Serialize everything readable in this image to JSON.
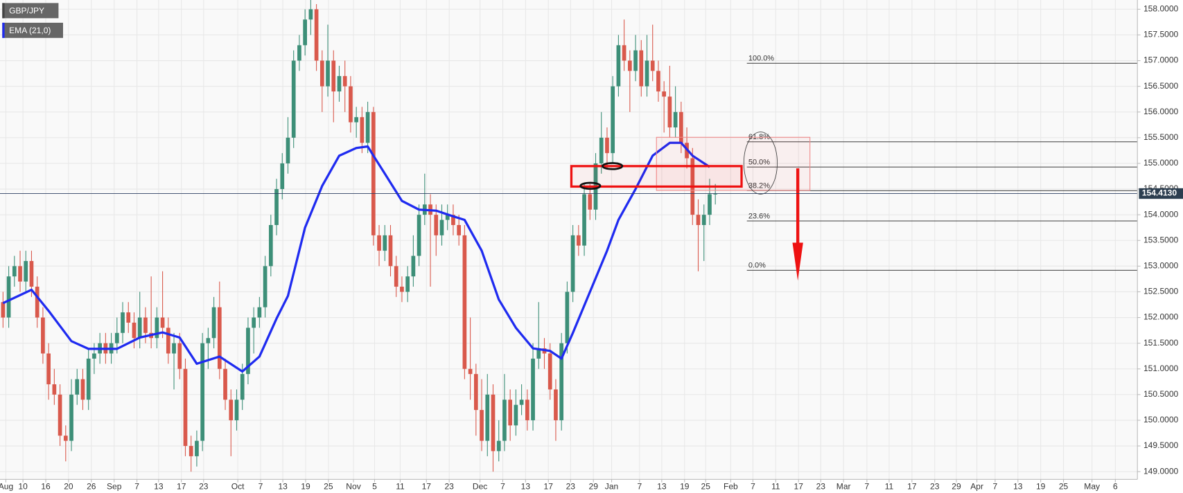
{
  "chart_data": {
    "type": "candlestick",
    "up_color": "#3d8f78",
    "down_color": "#d9594c",
    "grid": true,
    "xlim": [
      -0.53,
      199.07
    ],
    "ylim": [
      148.85,
      158.18
    ],
    "yticks": [
      {
        "value": 149.0,
        "label": "149.0000"
      },
      {
        "value": 149.5,
        "label": "149.5000"
      },
      {
        "value": 150.0,
        "label": "150.0000"
      },
      {
        "value": 150.5,
        "label": "150.5000"
      },
      {
        "value": 151.0,
        "label": "151.0000"
      },
      {
        "value": 151.5,
        "label": "151.5000"
      },
      {
        "value": 152.0,
        "label": "152.0000"
      },
      {
        "value": 152.5,
        "label": "152.5000"
      },
      {
        "value": 153.0,
        "label": "153.0000"
      },
      {
        "value": 153.5,
        "label": "153.5000"
      },
      {
        "value": 154.0,
        "label": "154.0000"
      },
      {
        "value": 154.5,
        "label": "154.5000"
      },
      {
        "value": 155.0,
        "label": "155.0000"
      },
      {
        "value": 155.5,
        "label": "155.5000"
      },
      {
        "value": 156.0,
        "label": "156.0000"
      },
      {
        "value": 156.5,
        "label": "156.5000"
      },
      {
        "value": 157.0,
        "label": "157.0000"
      },
      {
        "value": 157.5,
        "label": "157.5000"
      },
      {
        "value": 158.0,
        "label": "158.0000"
      }
    ],
    "xticks": [
      {
        "value": 0.5,
        "label": "Aug"
      },
      {
        "value": 3.5,
        "label": "10"
      },
      {
        "value": 7.5,
        "label": "16"
      },
      {
        "value": 11.5,
        "label": "20"
      },
      {
        "value": 15.5,
        "label": "26"
      },
      {
        "value": 19.5,
        "label": "Sep"
      },
      {
        "value": 23.5,
        "label": "7"
      },
      {
        "value": 27.3,
        "label": "13"
      },
      {
        "value": 31.3,
        "label": "17"
      },
      {
        "value": 35.2,
        "label": "23"
      },
      {
        "value": 41.2,
        "label": "Oct"
      },
      {
        "value": 45.2,
        "label": "7"
      },
      {
        "value": 49.1,
        "label": "13"
      },
      {
        "value": 53.1,
        "label": "19"
      },
      {
        "value": 57.1,
        "label": "25"
      },
      {
        "value": 61.5,
        "label": "Nov"
      },
      {
        "value": 65.2,
        "label": "5"
      },
      {
        "value": 69.7,
        "label": "11"
      },
      {
        "value": 74.3,
        "label": "17"
      },
      {
        "value": 78.3,
        "label": "23"
      },
      {
        "value": 83.7,
        "label": "Dec"
      },
      {
        "value": 87.7,
        "label": "7"
      },
      {
        "value": 91.7,
        "label": "13"
      },
      {
        "value": 95.7,
        "label": "17"
      },
      {
        "value": 99.6,
        "label": "23"
      },
      {
        "value": 103.6,
        "label": "29"
      },
      {
        "value": 106.8,
        "label": "Jan"
      },
      {
        "value": 111.7,
        "label": "7"
      },
      {
        "value": 115.6,
        "label": "13"
      },
      {
        "value": 119.6,
        "label": "19"
      },
      {
        "value": 123.3,
        "label": "25"
      },
      {
        "value": 127.7,
        "label": "Feb"
      },
      {
        "value": 131.6,
        "label": "7"
      },
      {
        "value": 135.6,
        "label": "11"
      },
      {
        "value": 139.6,
        "label": "17"
      },
      {
        "value": 143.5,
        "label": "23"
      },
      {
        "value": 147.5,
        "label": "Mar"
      },
      {
        "value": 151.6,
        "label": "7"
      },
      {
        "value": 155.5,
        "label": "11"
      },
      {
        "value": 159.5,
        "label": "17"
      },
      {
        "value": 163.5,
        "label": "23"
      },
      {
        "value": 167.3,
        "label": "29"
      },
      {
        "value": 170.9,
        "label": "Apr"
      },
      {
        "value": 174.1,
        "label": "7"
      },
      {
        "value": 178.1,
        "label": "13"
      },
      {
        "value": 182.1,
        "label": "19"
      },
      {
        "value": 186.1,
        "label": "25"
      },
      {
        "value": 191.1,
        "label": "May"
      },
      {
        "value": 195.2,
        "label": "6"
      }
    ],
    "series": [
      {
        "name": "GBP/JPY",
        "candles": [
          [
            152.3,
            152.5,
            151.8,
            152.0
          ],
          [
            152.0,
            153.0,
            151.8,
            152.8
          ],
          [
            152.8,
            153.2,
            152.6,
            153.0
          ],
          [
            153.0,
            153.3,
            152.5,
            152.7
          ],
          [
            152.7,
            153.3,
            152.5,
            153.1
          ],
          [
            153.1,
            153.3,
            152.4,
            152.6
          ],
          [
            152.6,
            152.8,
            151.8,
            152.0
          ],
          [
            152.0,
            152.2,
            151.1,
            151.3
          ],
          [
            151.3,
            151.5,
            150.4,
            150.7
          ],
          [
            150.7,
            151.0,
            150.3,
            150.5
          ],
          [
            150.5,
            150.7,
            149.5,
            149.7
          ],
          [
            149.7,
            149.9,
            149.2,
            149.6
          ],
          [
            149.6,
            150.8,
            149.4,
            150.5
          ],
          [
            150.5,
            151.0,
            150.3,
            150.8
          ],
          [
            150.8,
            151.0,
            150.2,
            150.4
          ],
          [
            150.4,
            151.4,
            150.2,
            151.2
          ],
          [
            151.2,
            151.5,
            150.9,
            151.3
          ],
          [
            151.3,
            151.7,
            151.1,
            151.5
          ],
          [
            151.5,
            151.7,
            151.1,
            151.3
          ],
          [
            151.3,
            151.7,
            151.1,
            151.5
          ],
          [
            151.5,
            152.0,
            151.3,
            151.7
          ],
          [
            151.7,
            152.3,
            151.5,
            152.1
          ],
          [
            152.1,
            152.3,
            151.7,
            151.9
          ],
          [
            151.9,
            152.1,
            151.4,
            151.6
          ],
          [
            151.6,
            152.5,
            151.4,
            152.0
          ],
          [
            152.0,
            152.2,
            151.5,
            151.7
          ],
          [
            151.7,
            152.8,
            151.4,
            151.6
          ],
          [
            151.6,
            152.2,
            151.4,
            152.0
          ],
          [
            152.0,
            152.9,
            151.6,
            151.8
          ],
          [
            151.8,
            152.0,
            151.1,
            151.3
          ],
          [
            151.3,
            151.7,
            150.6,
            151.5
          ],
          [
            151.5,
            151.7,
            150.8,
            151.0
          ],
          [
            151.0,
            151.2,
            149.3,
            149.5
          ],
          [
            149.5,
            149.7,
            149.0,
            149.3
          ],
          [
            149.3,
            149.8,
            149.1,
            149.6
          ],
          [
            149.6,
            151.7,
            149.4,
            151.5
          ],
          [
            151.5,
            151.8,
            151.0,
            151.6
          ],
          [
            151.6,
            152.4,
            151.4,
            152.2
          ],
          [
            152.2,
            152.7,
            150.8,
            151.0
          ],
          [
            151.0,
            151.2,
            150.2,
            150.4
          ],
          [
            150.4,
            150.6,
            149.3,
            150.0
          ],
          [
            150.0,
            150.6,
            149.8,
            150.4
          ],
          [
            150.4,
            151.1,
            150.2,
            150.9
          ],
          [
            150.9,
            152.0,
            150.7,
            151.8
          ],
          [
            151.8,
            152.2,
            151.3,
            152.0
          ],
          [
            152.0,
            152.4,
            151.8,
            152.2
          ],
          [
            152.2,
            153.2,
            152.0,
            153.0
          ],
          [
            153.0,
            154.0,
            152.8,
            153.8
          ],
          [
            153.8,
            154.7,
            153.6,
            154.5
          ],
          [
            154.5,
            155.2,
            154.3,
            155.0
          ],
          [
            155.0,
            155.9,
            154.8,
            155.5
          ],
          [
            155.5,
            157.2,
            155.3,
            157.0
          ],
          [
            157.0,
            157.5,
            156.8,
            157.3
          ],
          [
            157.3,
            158.0,
            157.1,
            157.8
          ],
          [
            157.8,
            158.2,
            157.5,
            158.0
          ],
          [
            158.0,
            158.1,
            156.8,
            157.0
          ],
          [
            157.0,
            157.2,
            156.0,
            156.5
          ],
          [
            156.5,
            157.7,
            156.3,
            157.0
          ],
          [
            157.0,
            157.2,
            155.8,
            156.4
          ],
          [
            156.4,
            156.9,
            156.2,
            156.7
          ],
          [
            156.7,
            157.0,
            156.0,
            156.5
          ],
          [
            156.5,
            156.7,
            155.6,
            155.8
          ],
          [
            155.8,
            156.1,
            155.5,
            155.9
          ],
          [
            155.9,
            156.1,
            155.2,
            155.4
          ],
          [
            155.4,
            156.2,
            155.2,
            156.0
          ],
          [
            156.0,
            156.1,
            153.4,
            153.6
          ],
          [
            153.6,
            153.8,
            153.0,
            153.3
          ],
          [
            153.3,
            153.8,
            153.1,
            153.6
          ],
          [
            153.6,
            153.8,
            152.8,
            153.0
          ],
          [
            153.0,
            153.2,
            152.4,
            152.6
          ],
          [
            152.6,
            152.8,
            152.3,
            152.5
          ],
          [
            152.5,
            153.0,
            152.3,
            152.8
          ],
          [
            152.8,
            153.6,
            152.6,
            153.2
          ],
          [
            153.2,
            154.2,
            153.0,
            154.0
          ],
          [
            154.0,
            154.8,
            153.8,
            154.2
          ],
          [
            154.2,
            154.4,
            152.6,
            154.0
          ],
          [
            154.0,
            154.2,
            153.2,
            153.6
          ],
          [
            153.6,
            154.2,
            153.4,
            153.9
          ],
          [
            153.9,
            154.2,
            153.7,
            154.0
          ],
          [
            154.0,
            154.2,
            153.6,
            153.8
          ],
          [
            153.8,
            154.0,
            153.4,
            153.6
          ],
          [
            153.6,
            153.8,
            150.8,
            151.0
          ],
          [
            151.0,
            152.0,
            150.4,
            150.9
          ],
          [
            150.9,
            151.1,
            149.7,
            150.2
          ],
          [
            150.2,
            150.8,
            149.4,
            149.6
          ],
          [
            149.6,
            150.9,
            149.3,
            150.5
          ],
          [
            150.5,
            150.7,
            149.0,
            149.4
          ],
          [
            149.4,
            150.0,
            149.2,
            149.6
          ],
          [
            149.6,
            150.9,
            149.4,
            150.4
          ],
          [
            150.4,
            150.6,
            149.6,
            149.9
          ],
          [
            149.9,
            150.6,
            149.7,
            150.3
          ],
          [
            150.3,
            150.7,
            150.1,
            150.4
          ],
          [
            150.4,
            150.6,
            149.8,
            150.0
          ],
          [
            150.0,
            151.5,
            149.8,
            151.2
          ],
          [
            151.2,
            152.3,
            151.0,
            151.4
          ],
          [
            151.4,
            151.6,
            151.0,
            151.3
          ],
          [
            151.3,
            151.5,
            150.4,
            150.6
          ],
          [
            150.6,
            150.8,
            149.6,
            150.0
          ],
          [
            150.0,
            151.7,
            149.8,
            151.5
          ],
          [
            151.5,
            152.7,
            151.3,
            152.5
          ],
          [
            152.5,
            153.8,
            152.3,
            153.6
          ],
          [
            153.6,
            153.8,
            153.2,
            153.4
          ],
          [
            153.4,
            154.6,
            153.2,
            154.4
          ],
          [
            154.4,
            154.6,
            153.9,
            154.1
          ],
          [
            154.1,
            155.2,
            153.9,
            155.0
          ],
          [
            155.0,
            156.0,
            154.8,
            155.5
          ],
          [
            155.5,
            155.7,
            154.9,
            155.2
          ],
          [
            155.2,
            156.7,
            155.0,
            156.5
          ],
          [
            156.5,
            157.5,
            156.3,
            157.3
          ],
          [
            157.3,
            157.8,
            156.8,
            157.0
          ],
          [
            157.0,
            157.2,
            156.0,
            156.8
          ],
          [
            156.8,
            157.5,
            156.6,
            157.2
          ],
          [
            157.2,
            157.4,
            156.3,
            156.5
          ],
          [
            156.5,
            157.5,
            156.3,
            157.0
          ],
          [
            157.0,
            157.7,
            156.6,
            156.8
          ],
          [
            156.8,
            157.0,
            156.2,
            156.4
          ],
          [
            156.4,
            156.6,
            155.6,
            156.3
          ],
          [
            156.3,
            156.9,
            155.5,
            155.7
          ],
          [
            155.7,
            156.5,
            155.5,
            156.0
          ],
          [
            156.0,
            156.2,
            155.2,
            155.4
          ],
          [
            155.4,
            155.7,
            154.9,
            155.1
          ],
          [
            155.1,
            155.3,
            153.8,
            154.0
          ],
          [
            154.0,
            154.3,
            152.9,
            153.8
          ],
          [
            153.8,
            154.2,
            153.1,
            154.0
          ],
          [
            154.0,
            154.7,
            153.8,
            154.4
          ],
          [
            154.4,
            154.6,
            154.2,
            154.41
          ]
        ]
      },
      {
        "name": "EMA (21,0)",
        "color": "#1f2bf0",
        "x": [
          0,
          5,
          8,
          12,
          15,
          20,
          24,
          28,
          31,
          34,
          38,
          42,
          45,
          48,
          50,
          53,
          56,
          59,
          62,
          64,
          65,
          67,
          70,
          73,
          76,
          79,
          81,
          84,
          87,
          90,
          93,
          96,
          98,
          100,
          103,
          106,
          108,
          111,
          114,
          117,
          119,
          121,
          124
        ],
        "values": [
          152.28,
          152.54,
          152.13,
          151.54,
          151.39,
          151.39,
          151.61,
          151.71,
          151.61,
          151.1,
          151.24,
          150.95,
          151.24,
          151.98,
          152.42,
          153.75,
          154.56,
          155.15,
          155.3,
          155.33,
          155.15,
          154.8,
          154.27,
          154.1,
          154.08,
          153.97,
          153.9,
          153.3,
          152.35,
          151.8,
          151.4,
          151.35,
          151.2,
          151.7,
          152.5,
          153.3,
          153.9,
          154.5,
          155.15,
          155.4,
          155.4,
          155.15,
          154.93
        ]
      }
    ],
    "fib_levels": [
      {
        "label": "100.0%",
        "value": 156.95
      },
      {
        "label": "61.8%",
        "value": 155.42
      },
      {
        "label": "50.0%",
        "value": 154.93
      },
      {
        "label": "38.2%",
        "value": 154.47
      },
      {
        "label": "23.6%",
        "value": 153.88
      },
      {
        "label": "0.0%",
        "value": 152.92
      }
    ],
    "last_price": {
      "value": 154.413,
      "label": "154.4130"
    }
  }
}
